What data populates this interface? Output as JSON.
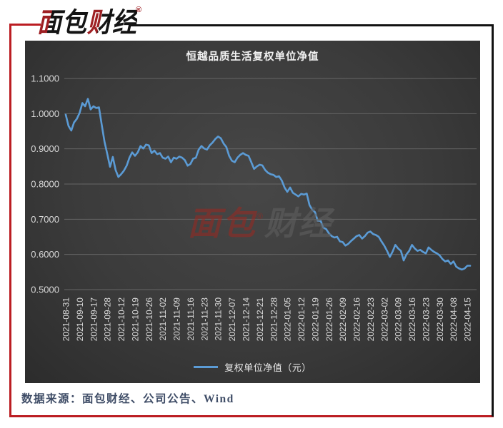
{
  "logo": {
    "text": "面包财经",
    "registered": "®"
  },
  "header_frame": {
    "red_color": "#BB1D22",
    "black_color": "#121212"
  },
  "watermark": {
    "text_red": "面包",
    "text_gray": "财经",
    "registered": "®"
  },
  "source": {
    "text": "数据来源：面包财经、公司公告、Wind"
  },
  "chart_data": {
    "type": "line",
    "title": "恒越品质生活复权单位净值",
    "legend": [
      "复权单位净值（元）"
    ],
    "legend_position": "bottom",
    "background": "#3F3F3F",
    "grid": "horizontal",
    "grid_color": "#666666",
    "axis_text_color": "#D9D9D9",
    "ylim": [
      0.5,
      1.1
    ],
    "y_ticks": [
      1.1,
      1.0,
      0.9,
      0.8,
      0.7,
      0.6,
      0.5
    ],
    "y_tick_labels": [
      "1.1000",
      "1.0000",
      "0.9000",
      "0.8000",
      "0.7000",
      "0.6000",
      "0.5000"
    ],
    "x_ticks_every_n_points": 5,
    "x_tick_labels": [
      "2021-08-31",
      "2021-09-10",
      "2021-09-17",
      "2021-09-28",
      "2021-10-12",
      "2021-10-19",
      "2021-10-26",
      "2021-11-02",
      "2021-11-09",
      "2021-11-16",
      "2021-11-23",
      "2021-11-30",
      "2021-12-07",
      "2021-12-14",
      "2021-12-21",
      "2021-12-28",
      "2022-01-05",
      "2022-01-12",
      "2022-01-19",
      "2022-01-26",
      "2022-02-09",
      "2022-02-16",
      "2022-02-23",
      "2022-03-02",
      "2022-03-09",
      "2022-03-16",
      "2022-03-23",
      "2022-03-30",
      "2022-04-08",
      "2022-04-15"
    ],
    "series": [
      {
        "name": "复权单位净值（元）",
        "color": "#5B9BD5",
        "values": [
          0.997,
          0.965,
          0.952,
          0.975,
          0.985,
          1.002,
          1.03,
          1.021,
          1.042,
          1.012,
          1.021,
          1.016,
          1.018,
          0.968,
          0.92,
          0.885,
          0.849,
          0.877,
          0.84,
          0.82,
          0.828,
          0.838,
          0.852,
          0.875,
          0.89,
          0.88,
          0.89,
          0.908,
          0.901,
          0.912,
          0.91,
          0.888,
          0.895,
          0.885,
          0.888,
          0.875,
          0.872,
          0.878,
          0.862,
          0.875,
          0.872,
          0.878,
          0.875,
          0.868,
          0.852,
          0.857,
          0.872,
          0.875,
          0.898,
          0.908,
          0.901,
          0.898,
          0.91,
          0.918,
          0.928,
          0.935,
          0.93,
          0.915,
          0.905,
          0.88,
          0.866,
          0.862,
          0.875,
          0.883,
          0.888,
          0.883,
          0.88,
          0.862,
          0.843,
          0.85,
          0.855,
          0.853,
          0.84,
          0.832,
          0.828,
          0.826,
          0.82,
          0.822,
          0.81,
          0.79,
          0.778,
          0.79,
          0.775,
          0.77,
          0.765,
          0.772,
          0.77,
          0.773,
          0.74,
          0.727,
          0.72,
          0.695,
          0.696,
          0.676,
          0.672,
          0.66,
          0.652,
          0.648,
          0.65,
          0.637,
          0.635,
          0.625,
          0.63,
          0.638,
          0.645,
          0.652,
          0.655,
          0.645,
          0.652,
          0.662,
          0.665,
          0.658,
          0.655,
          0.65,
          0.637,
          0.625,
          0.61,
          0.593,
          0.608,
          0.627,
          0.617,
          0.61,
          0.583,
          0.6,
          0.61,
          0.627,
          0.617,
          0.61,
          0.613,
          0.607,
          0.603,
          0.62,
          0.613,
          0.607,
          0.603,
          0.597,
          0.587,
          0.58,
          0.583,
          0.573,
          0.58,
          0.565,
          0.56,
          0.557,
          0.56,
          0.568,
          0.568
        ]
      }
    ]
  }
}
